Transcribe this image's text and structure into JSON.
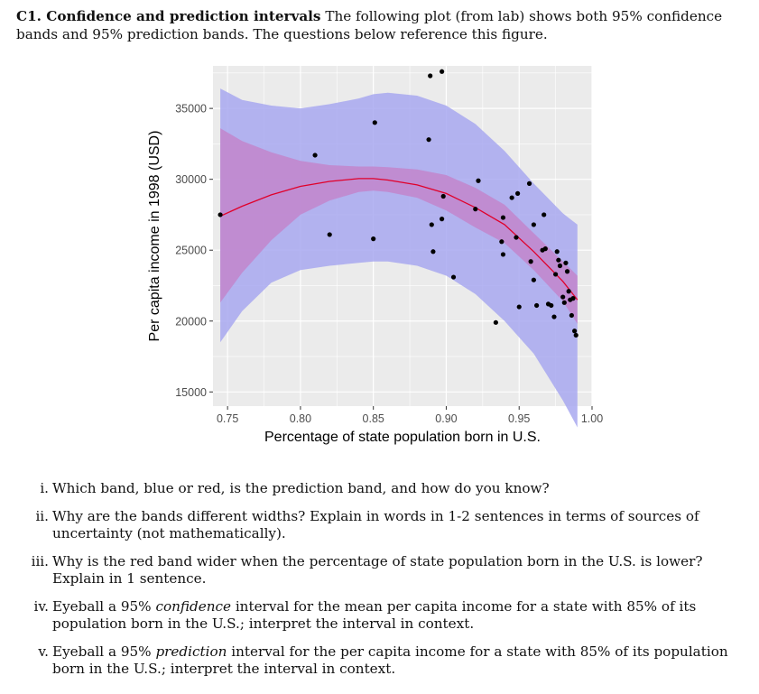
{
  "heading": {
    "label": "C1. Confidence and prediction intervals",
    "text": "The following plot (from lab) shows both 95% confidence bands and 95% prediction bands. The questions below reference this figure."
  },
  "chart_data": {
    "type": "scatter",
    "title": "",
    "xlabel": "Percentage of state population born in U.S.",
    "ylabel": "Per capita income in 1998 (USD)",
    "xlim": [
      0.74,
      1.0
    ],
    "ylim": [
      14000,
      38000
    ],
    "xticks": [
      "0.75",
      "0.80",
      "0.85",
      "0.90",
      "0.95",
      "1.00"
    ],
    "yticks": [
      "15000",
      "20000",
      "25000",
      "30000",
      "35000"
    ],
    "grid": true,
    "colors": {
      "panel": "#ebebeb",
      "grid": "#ffffff",
      "prediction_band": "#a8a8f0",
      "confidence_band": "#c47fc7",
      "fit_line": "#e0002a",
      "points": "#000000"
    },
    "fit_line": {
      "x": [
        0.745,
        0.76,
        0.78,
        0.8,
        0.82,
        0.84,
        0.85,
        0.86,
        0.88,
        0.9,
        0.92,
        0.94,
        0.96,
        0.98,
        0.99
      ],
      "y": [
        27400,
        28100,
        28900,
        29500,
        29850,
        30050,
        30050,
        29950,
        29600,
        29000,
        28000,
        26800,
        24900,
        22800,
        21500
      ]
    },
    "confidence_band": {
      "x": [
        0.745,
        0.76,
        0.78,
        0.8,
        0.82,
        0.84,
        0.85,
        0.86,
        0.88,
        0.9,
        0.92,
        0.94,
        0.96,
        0.98,
        0.99
      ],
      "upper": [
        33600,
        32700,
        31900,
        31300,
        31000,
        30900,
        30900,
        30850,
        30700,
        30300,
        29400,
        28200,
        26200,
        24200,
        23200
      ],
      "lower": [
        21300,
        23400,
        25700,
        27500,
        28500,
        29100,
        29200,
        29100,
        28700,
        27800,
        26600,
        25500,
        23600,
        21400,
        19800
      ]
    },
    "prediction_band": {
      "x": [
        0.745,
        0.76,
        0.78,
        0.8,
        0.82,
        0.84,
        0.85,
        0.86,
        0.88,
        0.9,
        0.92,
        0.94,
        0.96,
        0.98,
        0.99
      ],
      "upper": [
        36400,
        35600,
        35200,
        35000,
        35300,
        35700,
        36000,
        36100,
        35900,
        35200,
        33900,
        32000,
        29700,
        27600,
        26800
      ],
      "lower": [
        18500,
        20700,
        22700,
        23600,
        23900,
        24100,
        24200,
        24200,
        23900,
        23200,
        21900,
        20000,
        17700,
        14400,
        12500
      ]
    },
    "points": [
      {
        "x": 0.745,
        "y": 27500
      },
      {
        "x": 0.81,
        "y": 31700
      },
      {
        "x": 0.82,
        "y": 26100
      },
      {
        "x": 0.85,
        "y": 25800
      },
      {
        "x": 0.851,
        "y": 34000
      },
      {
        "x": 0.888,
        "y": 32800
      },
      {
        "x": 0.889,
        "y": 37300
      },
      {
        "x": 0.89,
        "y": 26800
      },
      {
        "x": 0.891,
        "y": 24900
      },
      {
        "x": 0.897,
        "y": 37600
      },
      {
        "x": 0.897,
        "y": 27200
      },
      {
        "x": 0.898,
        "y": 28800
      },
      {
        "x": 0.905,
        "y": 23100
      },
      {
        "x": 0.92,
        "y": 27900
      },
      {
        "x": 0.922,
        "y": 29900
      },
      {
        "x": 0.934,
        "y": 19900
      },
      {
        "x": 0.938,
        "y": 25600
      },
      {
        "x": 0.939,
        "y": 27300
      },
      {
        "x": 0.939,
        "y": 24700
      },
      {
        "x": 0.945,
        "y": 28700
      },
      {
        "x": 0.948,
        "y": 25900
      },
      {
        "x": 0.949,
        "y": 29000
      },
      {
        "x": 0.95,
        "y": 21000
      },
      {
        "x": 0.957,
        "y": 29700
      },
      {
        "x": 0.958,
        "y": 24200
      },
      {
        "x": 0.96,
        "y": 22900
      },
      {
        "x": 0.96,
        "y": 26800
      },
      {
        "x": 0.962,
        "y": 21100
      },
      {
        "x": 0.966,
        "y": 25000
      },
      {
        "x": 0.967,
        "y": 27500
      },
      {
        "x": 0.968,
        "y": 25100
      },
      {
        "x": 0.97,
        "y": 21200
      },
      {
        "x": 0.972,
        "y": 21100
      },
      {
        "x": 0.974,
        "y": 20300
      },
      {
        "x": 0.975,
        "y": 23300
      },
      {
        "x": 0.976,
        "y": 24900
      },
      {
        "x": 0.977,
        "y": 24300
      },
      {
        "x": 0.978,
        "y": 23900
      },
      {
        "x": 0.98,
        "y": 21700
      },
      {
        "x": 0.981,
        "y": 21300
      },
      {
        "x": 0.982,
        "y": 24100
      },
      {
        "x": 0.983,
        "y": 23500
      },
      {
        "x": 0.984,
        "y": 22100
      },
      {
        "x": 0.985,
        "y": 21500
      },
      {
        "x": 0.986,
        "y": 20400
      },
      {
        "x": 0.987,
        "y": 21600
      },
      {
        "x": 0.988,
        "y": 19300
      },
      {
        "x": 0.989,
        "y": 19000
      }
    ]
  },
  "questions": [
    {
      "num": "i.",
      "text": "Which band, blue or red, is the prediction band, and how do you know?"
    },
    {
      "num": "ii.",
      "text": "Why are the bands different widths? Explain in words in 1-2 sentences in terms of sources of uncertainty (not mathematically)."
    },
    {
      "num": "iii.",
      "text": "Why is the red band wider when the percentage of state population born in the U.S. is lower? Explain in 1 sentence."
    },
    {
      "num": "iv.",
      "pre": "Eyeball a 95% ",
      "emph": "confidence",
      "post": " interval for the mean per capita income for a state with 85% of its population born in the U.S.; interpret the interval in context."
    },
    {
      "num": "v.",
      "pre": "Eyeball a 95% ",
      "emph": "prediction",
      "post": " interval for the per capita income for a state with 85% of its population born in the U.S.; interpret the interval in context."
    }
  ]
}
